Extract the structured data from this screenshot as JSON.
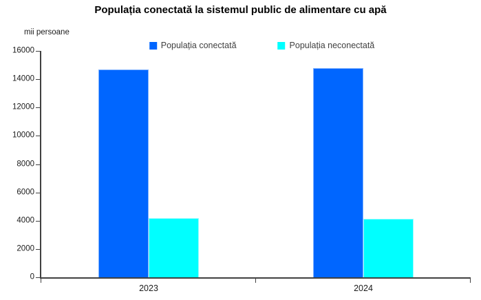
{
  "chart_data": {
    "type": "bar",
    "title": "Populația conectată la sistemul public de alimentare cu apă",
    "ylabel": "mii persoane",
    "xlabel": "",
    "categories": [
      "2023",
      "2024"
    ],
    "series": [
      {
        "name": "Populația conectată",
        "color": "#0066FF",
        "edge_color": "#7FB2FF",
        "values": [
          14700,
          14800
        ]
      },
      {
        "name": "Populația neconectată",
        "color": "#00FFFF",
        "edge_color": "#9BFBFF",
        "values": [
          4200,
          4150
        ]
      }
    ],
    "ylim": [
      0,
      16000
    ],
    "yticks": [
      0,
      2000,
      4000,
      6000,
      8000,
      10000,
      12000,
      14000,
      16000
    ],
    "grid": false,
    "legend_position": "top-center",
    "axis_color": "#404040",
    "text_color": "#1a1a1a",
    "legend_text_color": "#404040"
  }
}
